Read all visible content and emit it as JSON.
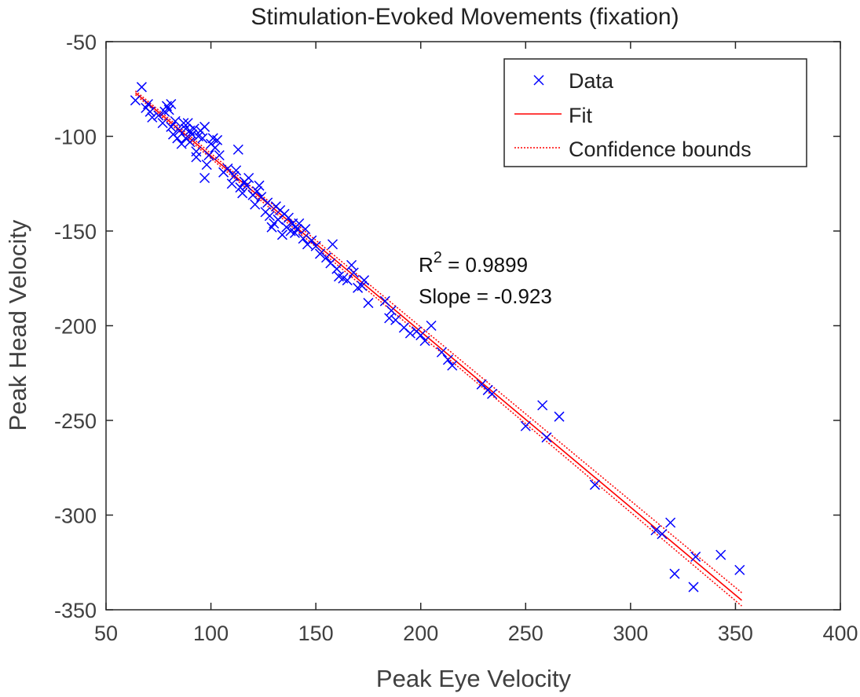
{
  "chart_data": {
    "type": "scatter",
    "title": "Stimulation-Evoked Movements (fixation)",
    "xlabel": "Peak Eye Velocity",
    "ylabel": "Peak Head Velocity",
    "xlim": [
      50,
      400
    ],
    "ylim": [
      -350,
      -50
    ],
    "xticks": [
      50,
      100,
      150,
      200,
      250,
      300,
      350,
      400
    ],
    "yticks": [
      -50,
      -100,
      -150,
      -200,
      -250,
      -300,
      -350
    ],
    "grid": false,
    "legend_position": "top-right",
    "legend": [
      "Data",
      "Fit",
      "Confidence bounds"
    ],
    "colors": {
      "data": "#0000ff",
      "fit": "#ff0000",
      "bounds": "#ff0000",
      "axis": "#262626"
    },
    "annotation": {
      "r2_label": "R",
      "r2_exp": "2",
      "r2_value": " = 0.9899",
      "slope_text": "Slope = -0.923"
    },
    "fit_line": {
      "x": [
        64,
        353
      ],
      "y": [
        -77,
        -345
      ]
    },
    "confidence_upper": {
      "x": [
        64,
        353
      ],
      "y": [
        -76,
        -341
      ]
    },
    "confidence_lower": {
      "x": [
        64,
        353
      ],
      "y": [
        -78,
        -348
      ]
    },
    "series": [
      {
        "name": "Data",
        "points": [
          [
            64,
            -81
          ],
          [
            67,
            -74
          ],
          [
            69,
            -85
          ],
          [
            70,
            -83
          ],
          [
            71,
            -87
          ],
          [
            72,
            -90
          ],
          [
            75,
            -89
          ],
          [
            77,
            -93
          ],
          [
            78,
            -87
          ],
          [
            79,
            -84
          ],
          [
            80,
            -86
          ],
          [
            81,
            -83
          ],
          [
            81,
            -95
          ],
          [
            82,
            -99
          ],
          [
            83,
            -92
          ],
          [
            84,
            -101
          ],
          [
            85,
            -97
          ],
          [
            86,
            -104
          ],
          [
            87,
            -93
          ],
          [
            88,
            -96
          ],
          [
            88,
            -101
          ],
          [
            89,
            -93
          ],
          [
            90,
            -97
          ],
          [
            90,
            -103
          ],
          [
            91,
            -99
          ],
          [
            92,
            -96
          ],
          [
            93,
            -108
          ],
          [
            93,
            -111
          ],
          [
            94,
            -100
          ],
          [
            95,
            -97
          ],
          [
            96,
            -101
          ],
          [
            97,
            -95
          ],
          [
            97,
            -122
          ],
          [
            98,
            -115
          ],
          [
            99,
            -110
          ],
          [
            100,
            -104
          ],
          [
            101,
            -101
          ],
          [
            102,
            -106
          ],
          [
            103,
            -102
          ],
          [
            104,
            -110
          ],
          [
            106,
            -119
          ],
          [
            108,
            -117
          ],
          [
            110,
            -125
          ],
          [
            111,
            -121
          ],
          [
            112,
            -118
          ],
          [
            113,
            -107
          ],
          [
            114,
            -127
          ],
          [
            115,
            -130
          ],
          [
            116,
            -124
          ],
          [
            117,
            -126
          ],
          [
            118,
            -122
          ],
          [
            120,
            -131
          ],
          [
            121,
            -136
          ],
          [
            122,
            -129
          ],
          [
            123,
            -126
          ],
          [
            124,
            -132
          ],
          [
            126,
            -140
          ],
          [
            127,
            -135
          ],
          [
            128,
            -142
          ],
          [
            129,
            -148
          ],
          [
            130,
            -146
          ],
          [
            131,
            -137
          ],
          [
            132,
            -144
          ],
          [
            133,
            -139
          ],
          [
            134,
            -152
          ],
          [
            135,
            -141
          ],
          [
            136,
            -148
          ],
          [
            137,
            -143
          ],
          [
            138,
            -150
          ],
          [
            139,
            -146
          ],
          [
            140,
            -151
          ],
          [
            141,
            -149
          ],
          [
            142,
            -146
          ],
          [
            144,
            -154
          ],
          [
            145,
            -149
          ],
          [
            146,
            -157
          ],
          [
            148,
            -155
          ],
          [
            150,
            -158
          ],
          [
            152,
            -162
          ],
          [
            155,
            -164
          ],
          [
            157,
            -167
          ],
          [
            158,
            -157
          ],
          [
            160,
            -170
          ],
          [
            161,
            -174
          ],
          [
            163,
            -175
          ],
          [
            165,
            -176
          ],
          [
            167,
            -168
          ],
          [
            168,
            -172
          ],
          [
            170,
            -180
          ],
          [
            172,
            -179
          ],
          [
            173,
            -176
          ],
          [
            175,
            -188
          ],
          [
            183,
            -187
          ],
          [
            185,
            -196
          ],
          [
            186,
            -192
          ],
          [
            188,
            -197
          ],
          [
            192,
            -201
          ],
          [
            195,
            -204
          ],
          [
            198,
            -203
          ],
          [
            200,
            -205
          ],
          [
            202,
            -208
          ],
          [
            205,
            -200
          ],
          [
            210,
            -214
          ],
          [
            213,
            -218
          ],
          [
            215,
            -221
          ],
          [
            229,
            -231
          ],
          [
            232,
            -234
          ],
          [
            234,
            -236
          ],
          [
            250,
            -253
          ],
          [
            258,
            -242
          ],
          [
            260,
            -259
          ],
          [
            266,
            -248
          ],
          [
            283,
            -284
          ],
          [
            312,
            -308
          ],
          [
            315,
            -310
          ],
          [
            319,
            -304
          ],
          [
            321,
            -331
          ],
          [
            330,
            -338
          ],
          [
            331,
            -322
          ],
          [
            343,
            -321
          ],
          [
            352,
            -329
          ]
        ]
      }
    ]
  }
}
